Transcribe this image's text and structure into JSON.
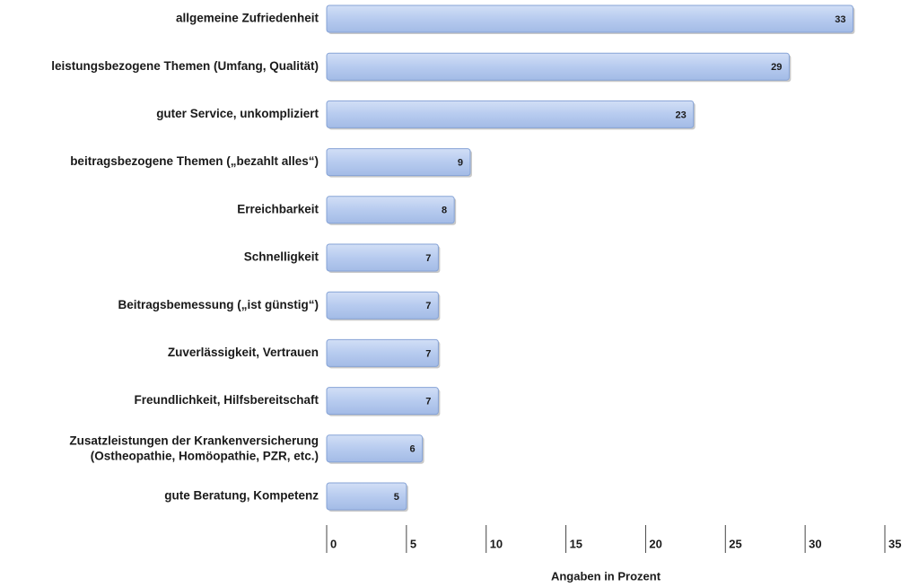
{
  "chart_data": {
    "type": "bar",
    "orientation": "horizontal",
    "categories": [
      "allgemeine Zufriedenheit",
      "leistungsbezogene Themen (Umfang, Qualität)",
      "guter Service, unkompliziert",
      "beitragsbezogene Themen („bezahlt alles“)",
      "Erreichbarkeit",
      "Schnelligkeit",
      "Beitragsbemessung („ist günstig“)",
      "Zuverlässigkeit, Vertrauen",
      "Freundlichkeit, Hilfsbereitschaft",
      "Zusatzleistungen der Krankenversicherung\n(Ostheopathie, Homöopathie, PZR, etc.)",
      "gute Beratung, Kompetenz"
    ],
    "values": [
      33,
      29,
      23,
      9,
      8,
      7,
      7,
      7,
      7,
      6,
      5
    ],
    "color": "#b7cbef",
    "xlim": [
      0,
      35
    ],
    "xticks": [
      0,
      5,
      10,
      15,
      20,
      25,
      30,
      35
    ],
    "xlabel": "Angaben in Prozent"
  }
}
